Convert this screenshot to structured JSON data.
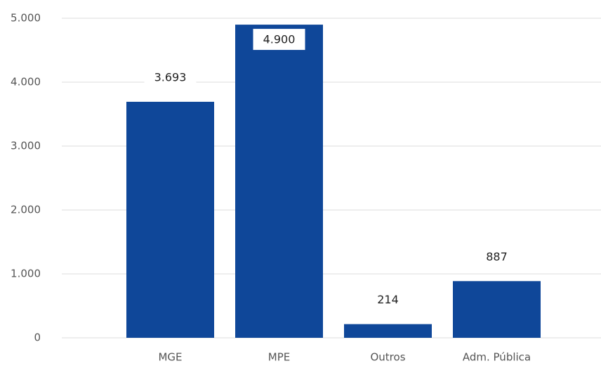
{
  "chart_data": {
    "type": "bar",
    "categories": [
      "MGE",
      "MPE",
      "Outros",
      "Adm. Pública"
    ],
    "values": [
      3693,
      4900,
      214,
      887
    ],
    "value_labels": [
      "3.693",
      "4.900",
      "214",
      "887"
    ],
    "color": "#0f4799",
    "ylim": [
      0,
      5000
    ],
    "yticks": [
      0,
      {
        "value": 1000,
        "label": "1.000"
      },
      {
        "value": 2000,
        "label": "2.000"
      },
      {
        "value": 3000,
        "label": "3.000"
      },
      {
        "value": 4000,
        "label": "4.000"
      },
      {
        "value": 5000,
        "label": "5.000"
      }
    ],
    "grid": true
  }
}
